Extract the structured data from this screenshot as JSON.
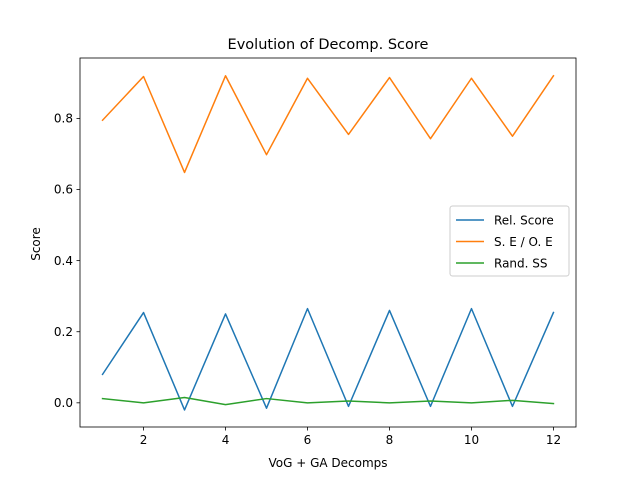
{
  "chart_data": {
    "type": "line",
    "title": "Evolution of Decomp. Score",
    "xlabel": "VoG + GA Decomps",
    "ylabel": "Score",
    "x": [
      1,
      2,
      3,
      4,
      5,
      6,
      7,
      8,
      9,
      10,
      11,
      12
    ],
    "xlim": [
      0.45,
      12.55
    ],
    "ylim": [
      -0.068,
      0.97
    ],
    "xticks": [
      2,
      4,
      6,
      8,
      10,
      12
    ],
    "yticks": [
      0.0,
      0.2,
      0.4,
      0.6,
      0.8
    ],
    "xtick_labels": [
      "2",
      "4",
      "6",
      "8",
      "10",
      "12"
    ],
    "ytick_labels": [
      "0.0",
      "0.2",
      "0.4",
      "0.6",
      "0.8"
    ],
    "grid": false,
    "legend_position": "center-right",
    "series": [
      {
        "name": "Rel. Score",
        "color": "#1f77b4",
        "values": [
          0.08,
          0.254,
          -0.02,
          0.25,
          -0.015,
          0.265,
          -0.01,
          0.26,
          -0.01,
          0.265,
          -0.01,
          0.254
        ]
      },
      {
        "name": "S. E / O. E",
        "color": "#ff7f0e",
        "values": [
          0.795,
          0.918,
          0.648,
          0.92,
          0.698,
          0.913,
          0.755,
          0.915,
          0.743,
          0.913,
          0.75,
          0.92
        ]
      },
      {
        "name": "Rand. SS",
        "color": "#2ca02c",
        "values": [
          0.012,
          0.0,
          0.015,
          -0.005,
          0.012,
          0.0,
          0.005,
          0.0,
          0.005,
          0.0,
          0.007,
          -0.002
        ]
      }
    ]
  }
}
